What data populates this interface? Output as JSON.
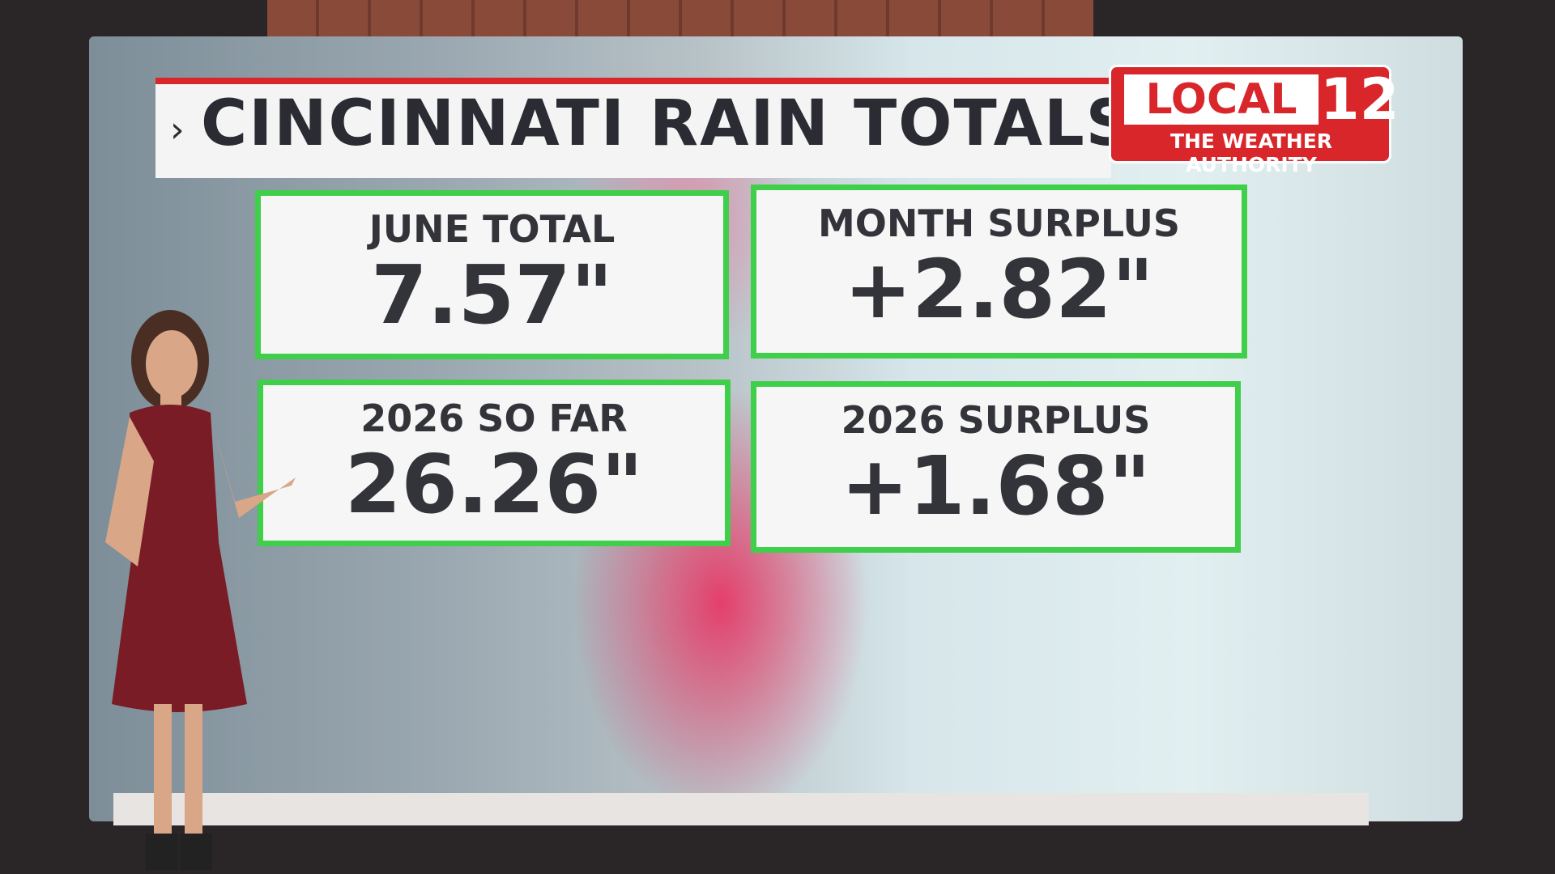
{
  "header": {
    "title": "CINCINNATI RAIN TOTALS",
    "logo": {
      "name": "LOCAL",
      "number": "12",
      "tagline": "THE WEATHER AUTHORITY"
    }
  },
  "cards": [
    {
      "label": "JUNE TOTAL",
      "value": "7.57\""
    },
    {
      "label": "MONTH SURPLUS",
      "value": "+2.82\""
    },
    {
      "label": "2026 SO FAR",
      "value": "26.26\""
    },
    {
      "label": "2026 SURPLUS",
      "value": "+1.68\""
    }
  ]
}
